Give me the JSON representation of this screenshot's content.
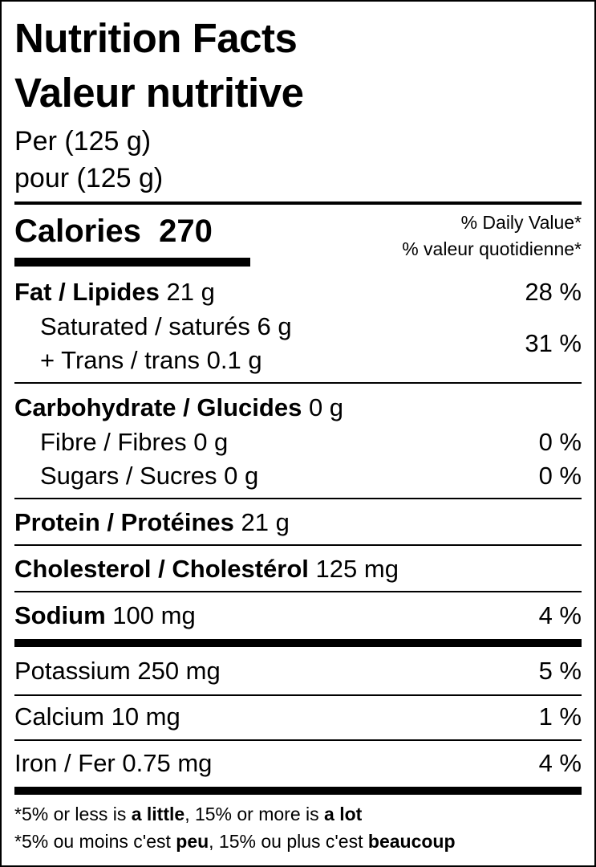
{
  "header": {
    "title_en": "Nutrition Facts",
    "title_fr": "Valeur nutritive",
    "serving_en": "Per (125 g)",
    "serving_fr": "pour (125 g)"
  },
  "calories": {
    "label": "Calories",
    "value": "270",
    "dv_header_en": "% Daily Value*",
    "dv_header_fr": "% valeur quotidienne*"
  },
  "nutrients": {
    "fat": {
      "label": "Fat / Lipides",
      "amount": "21 g",
      "dv": "28 %"
    },
    "saturated": {
      "label": "Saturated / saturés 6 g"
    },
    "trans": {
      "label": "+ Trans / trans 0.1 g",
      "dv": "31 %"
    },
    "carbohydrate": {
      "label": "Carbohydrate / Glucides",
      "amount": "0 g"
    },
    "fibre": {
      "label": "Fibre / Fibres 0 g",
      "dv": "0 %"
    },
    "sugars": {
      "label": "Sugars / Sucres 0 g",
      "dv": "0 %"
    },
    "protein": {
      "label": "Protein / Protéines",
      "amount": "21 g"
    },
    "cholesterol": {
      "label": "Cholesterol / Cholestérol",
      "amount": "125 mg"
    },
    "sodium": {
      "label": "Sodium",
      "amount": "100 mg",
      "dv": "4 %"
    },
    "potassium": {
      "label": "Potassium 250 mg",
      "dv": "5 %"
    },
    "calcium": {
      "label": "Calcium 10 mg",
      "dv": "1 %"
    },
    "iron": {
      "label": "Iron / Fer 0.75 mg",
      "dv": "4 %"
    }
  },
  "footnote": {
    "en": {
      "star": "*",
      "a": "5% or less is ",
      "b": "a little",
      "c": ", 15% or more is ",
      "d": "a lot"
    },
    "fr": {
      "star": "*",
      "a": "5% ou moins c'est ",
      "b": "peu",
      "c": ", 15% ou plus c'est ",
      "d": "beaucoup"
    }
  }
}
